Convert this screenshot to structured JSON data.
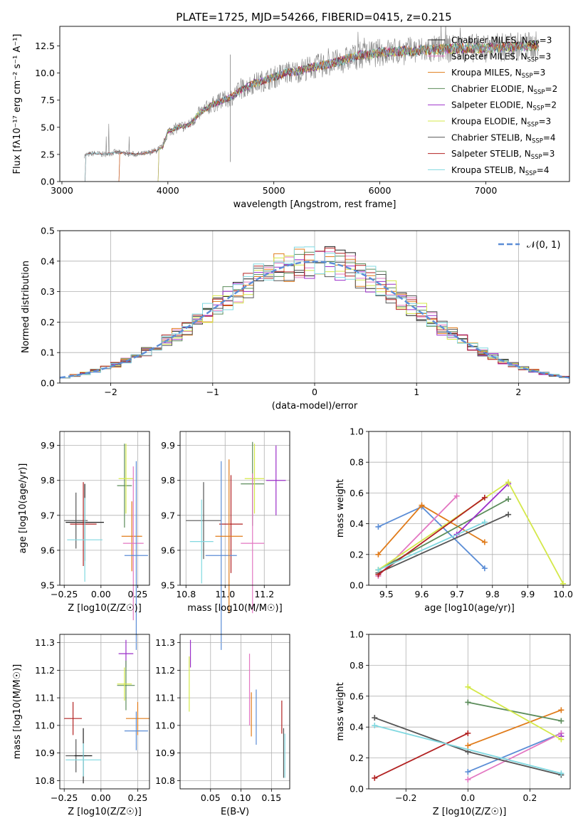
{
  "figure": {
    "title": "PLATE=1725, MJD=54266, FIBERID=0415, z=0.215"
  },
  "colors": {
    "chabrier_miles": "#1f1f1f",
    "salpeter_miles": "#e377c2",
    "kroupa_miles": "#e07b1a",
    "chabrier_elodie": "#5b8c5a",
    "salpeter_elodie": "#9b2fc9",
    "kroupa_elodie": "#d4e84a",
    "chabrier_stelib": "#555555",
    "salpeter_stelib": "#b22222",
    "kroupa_stelib": "#80d8e0",
    "spectrum": "#808080",
    "blue": "#5b8dd6",
    "grid": "#b0b0b0"
  },
  "chart_data": [
    {
      "id": "spectrum",
      "type": "line",
      "title": "PLATE=1725, MJD=54266, FIBERID=0415, z=0.215",
      "xlabel": "wavelength [Angstrom, rest frame]",
      "ylabel": "Flux [fλ10⁻¹⁷ erg cm⁻² s⁻¹ A⁻¹]",
      "xlim": [
        2980,
        7790
      ],
      "ylim": [
        0,
        14.3
      ],
      "xticks": [
        3000,
        4000,
        5000,
        6000,
        7000
      ],
      "yticks": [
        0.0,
        2.5,
        5.0,
        7.5,
        10.0,
        12.5
      ],
      "grid": false,
      "legend_position": "right",
      "series": [
        {
          "name": "Chabrier MILES, N_SSP=3",
          "start": 3530
        },
        {
          "name": "Salpeter MILES, N_SSP=3",
          "start": 3530
        },
        {
          "name": "Kroupa MILES, N_SSP=3",
          "start": 3530
        },
        {
          "name": "Chabrier ELODIE, N_SSP=2",
          "start": 3900
        },
        {
          "name": "Salpeter ELODIE, N_SSP=2",
          "start": 3900
        },
        {
          "name": "Kroupa ELODIE, N_SSP=3",
          "start": 3900
        },
        {
          "name": "Chabrier STELIB, N_SSP=4",
          "start": 3210
        },
        {
          "name": "Salpeter STELIB, N_SSP=3",
          "start": 3210
        },
        {
          "name": "Kroupa STELIB, N_SSP=4",
          "start": 3210
        }
      ],
      "continuum_x": [
        3210,
        3300,
        3400,
        3500,
        3600,
        3700,
        3800,
        3900,
        3950,
        4000,
        4100,
        4200,
        4300,
        4400,
        4500,
        4600,
        4700,
        4800,
        4900,
        5000,
        5100,
        5200,
        5300,
        5400,
        5500,
        5600,
        5700,
        5800,
        5900,
        6000,
        6200,
        6400,
        6600,
        6800,
        7000,
        7200,
        7400,
        7500
      ],
      "continuum_y": [
        2.4,
        2.6,
        2.5,
        2.7,
        2.6,
        2.5,
        2.6,
        2.9,
        3.2,
        4.6,
        5.0,
        5.2,
        6.3,
        7.0,
        7.4,
        7.8,
        8.5,
        9.0,
        9.3,
        9.6,
        10.0,
        10.1,
        10.4,
        10.6,
        10.8,
        11.0,
        11.3,
        11.6,
        11.7,
        11.9,
        12.0,
        12.1,
        12.2,
        12.3,
        12.3,
        12.4,
        12.5,
        12.5
      ]
    },
    {
      "id": "residuals",
      "type": "histogram",
      "xlabel": "(data-model)/error",
      "ylabel": "Normed distribution",
      "xlim": [
        -2.5,
        2.5
      ],
      "ylim": [
        0,
        0.5
      ],
      "xticks": [
        -2,
        -1,
        0,
        1,
        2
      ],
      "yticks": [
        0.0,
        0.1,
        0.2,
        0.3,
        0.4,
        0.5
      ],
      "grid": true,
      "bin_width": 0.1,
      "legend": "N(0,1)",
      "legend_position": "top-right"
    },
    {
      "id": "age-vs-Z",
      "type": "errorbar",
      "xlabel": "Z [log10(Z/Z☉)]",
      "ylabel": "age  [log10(age/yr)]",
      "xlim": [
        -0.28,
        0.33
      ],
      "ylim": [
        9.5,
        9.94
      ],
      "xticks": [
        -0.25,
        0.0,
        0.25
      ],
      "yticks": [
        9.5,
        9.6,
        9.7,
        9.8,
        9.9
      ],
      "grid": true,
      "points": [
        {
          "x": -0.11,
          "y": 9.68,
          "xerr": 0.13,
          "yerr": 0.11
        },
        {
          "x": -0.17,
          "y": 9.685,
          "xerr": 0.08,
          "yerr": 0.08
        },
        {
          "x": -0.12,
          "y": 9.675,
          "xerr": 0.09,
          "yerr": 0.12
        },
        {
          "x": -0.11,
          "y": 9.63,
          "xerr": 0.12,
          "yerr": 0.12
        },
        {
          "x": 0.16,
          "y": 9.785,
          "xerr": 0.05,
          "yerr": 0.12
        },
        {
          "x": 0.17,
          "y": 9.805,
          "xerr": 0.05,
          "yerr": 0.1
        },
        {
          "x": 0.21,
          "y": 9.64,
          "xerr": 0.07,
          "yerr": 0.1
        },
        {
          "x": 0.22,
          "y": 9.62,
          "xerr": 0.07,
          "yerr": 0.22
        },
        {
          "x": 0.24,
          "y": 9.585,
          "xerr": 0.08,
          "yerr": 0.27
        }
      ]
    },
    {
      "id": "age-vs-mass",
      "type": "errorbar",
      "xlabel": "mass [log10(M/M☉)]",
      "ylabel": "",
      "xlim": [
        10.77,
        11.33
      ],
      "ylim": [
        9.5,
        9.94
      ],
      "xticks": [
        10.8,
        11.0,
        11.2
      ],
      "yticks": [
        9.5,
        9.6,
        9.7,
        9.8,
        9.9
      ],
      "grid": true,
      "points": [
        {
          "x": 10.89,
          "y": 9.685,
          "xerr": 0.09,
          "yerr": 0.11
        },
        {
          "x": 10.88,
          "y": 9.625,
          "xerr": 0.06,
          "yerr": 0.12
        },
        {
          "x": 11.03,
          "y": 9.675,
          "xerr": 0.06,
          "yerr": 0.14
        },
        {
          "x": 10.98,
          "y": 9.585,
          "xerr": 0.08,
          "yerr": 0.27
        },
        {
          "x": 11.02,
          "y": 9.64,
          "xerr": 0.07,
          "yerr": 0.22
        },
        {
          "x": 11.14,
          "y": 9.79,
          "xerr": 0.06,
          "yerr": 0.12
        },
        {
          "x": 11.15,
          "y": 9.805,
          "xerr": 0.05,
          "yerr": 0.1
        },
        {
          "x": 11.26,
          "y": 9.8,
          "xerr": 0.05,
          "yerr": 0.1
        },
        {
          "x": 11.14,
          "y": 9.62,
          "xerr": 0.06,
          "yerr": 0.2
        }
      ]
    },
    {
      "id": "weight-vs-age",
      "type": "line",
      "xlabel": "age  [log10(age/yr)]",
      "ylabel": "mass weight",
      "xlim": [
        9.45,
        10.02
      ],
      "ylim": [
        0.0,
        1.0
      ],
      "xticks": [
        9.5,
        9.6,
        9.7,
        9.8,
        9.9,
        10.0
      ],
      "yticks": [
        0.0,
        0.2,
        0.4,
        0.6,
        0.8,
        1.0
      ],
      "grid": true,
      "series": [
        {
          "x": [
            9.477,
            9.6,
            9.778
          ],
          "y": [
            0.38,
            0.51,
            0.11
          ]
        },
        {
          "x": [
            9.477,
            9.6,
            9.778
          ],
          "y": [
            0.2,
            0.52,
            0.28
          ]
        },
        {
          "x": [
            9.477,
            9.699
          ],
          "y": [
            0.06,
            0.58
          ]
        },
        {
          "x": [
            9.477,
            9.845
          ],
          "y": [
            0.1,
            0.56
          ]
        },
        {
          "x": [
            9.699,
            9.845
          ],
          "y": [
            0.33,
            0.66
          ]
        },
        {
          "x": [
            9.477,
            9.845,
            10.0
          ],
          "y": [
            0.1,
            0.67,
            0.01
          ]
        },
        {
          "x": [
            9.477,
            9.845
          ],
          "y": [
            0.08,
            0.46
          ]
        },
        {
          "x": [
            9.477,
            9.778
          ],
          "y": [
            0.07,
            0.57
          ]
        },
        {
          "x": [
            9.477,
            9.778
          ],
          "y": [
            0.1,
            0.41
          ]
        }
      ]
    },
    {
      "id": "mass-vs-Z",
      "type": "errorbar",
      "xlabel": "Z [log10(Z/Z☉)]",
      "ylabel": "mass [log10(M/M☉)]",
      "xlim": [
        -0.28,
        0.33
      ],
      "ylim": [
        10.77,
        11.33
      ],
      "xticks": [
        -0.25,
        0.0,
        0.25
      ],
      "yticks": [
        10.8,
        10.9,
        11.0,
        11.1,
        11.2,
        11.3
      ],
      "grid": true,
      "points": [
        {
          "x": -0.17,
          "y": 10.89,
          "xerr": 0.07,
          "yerr": 0.06
        },
        {
          "x": -0.12,
          "y": 10.89,
          "xerr": 0.06,
          "yerr": 0.1
        },
        {
          "x": -0.19,
          "y": 11.025,
          "xerr": 0.06,
          "yerr": 0.06
        },
        {
          "x": -0.12,
          "y": 10.875,
          "xerr": 0.12,
          "yerr": 0.06
        },
        {
          "x": 0.17,
          "y": 11.26,
          "xerr": 0.05,
          "yerr": 0.05
        },
        {
          "x": 0.17,
          "y": 11.145,
          "xerr": 0.06,
          "yerr": 0.09
        },
        {
          "x": 0.16,
          "y": 11.15,
          "xerr": 0.05,
          "yerr": 0.06
        },
        {
          "x": 0.25,
          "y": 11.025,
          "xerr": 0.08,
          "yerr": 0.06
        },
        {
          "x": 0.24,
          "y": 10.98,
          "xerr": 0.08,
          "yerr": 0.07
        }
      ]
    },
    {
      "id": "mass-vs-EBV",
      "type": "errorbar",
      "xlabel": "E(B-V)",
      "ylabel": "",
      "xlim": [
        0.0,
        0.18
      ],
      "ylim": [
        10.77,
        11.33
      ],
      "xticks": [
        0.05,
        0.1,
        0.15
      ],
      "yticks": [
        10.8,
        10.9,
        11.0,
        11.1,
        11.2,
        11.3
      ],
      "grid": true,
      "points": [
        {
          "x": 0.015,
          "y": 11.15,
          "xerr": 0,
          "yerr": 0.1
        },
        {
          "x": 0.017,
          "y": 11.26,
          "xerr": 0,
          "yerr": 0.05
        },
        {
          "x": 0.114,
          "y": 11.13,
          "xerr": 0,
          "yerr": 0.13
        },
        {
          "x": 0.117,
          "y": 11.04,
          "xerr": 0,
          "yerr": 0.08
        },
        {
          "x": 0.125,
          "y": 11.03,
          "xerr": 0,
          "yerr": 0.1
        },
        {
          "x": 0.167,
          "y": 11.03,
          "xerr": 0,
          "yerr": 0.06
        },
        {
          "x": 0.17,
          "y": 10.9,
          "xerr": 0,
          "yerr": 0.09
        },
        {
          "x": 0.172,
          "y": 10.89,
          "xerr": 0,
          "yerr": 0.08
        }
      ]
    },
    {
      "id": "weight-vs-Z",
      "type": "line",
      "xlabel": "Z [log10(Z/Z☉)]",
      "ylabel": "mass weight",
      "xlim": [
        -0.32,
        0.33
      ],
      "ylim": [
        0.0,
        1.0
      ],
      "xticks": [
        -0.2,
        0.0,
        0.2
      ],
      "yticks": [
        0.0,
        0.2,
        0.4,
        0.6,
        0.8,
        1.0
      ],
      "grid": true,
      "series": [
        {
          "x": [
            0.0,
            0.301
          ],
          "y": [
            0.11,
            0.36
          ]
        },
        {
          "x": [
            0.0,
            0.301
          ],
          "y": [
            0.28,
            0.51
          ]
        },
        {
          "x": [
            0.0,
            0.301
          ],
          "y": [
            0.06,
            0.36
          ]
        },
        {
          "x": [
            0.0,
            0.301
          ],
          "y": [
            0.56,
            0.44
          ]
        },
        {
          "x": [
            0.301
          ],
          "y": [
            0.34
          ]
        },
        {
          "x": [
            0.0,
            0.301
          ],
          "y": [
            0.66,
            0.32
          ]
        },
        {
          "x": [
            -0.301,
            0.0,
            0.301
          ],
          "y": [
            0.46,
            0.24,
            0.09
          ]
        },
        {
          "x": [
            -0.301,
            0.0
          ],
          "y": [
            0.07,
            0.36
          ]
        },
        {
          "x": [
            -0.301,
            0.301
          ],
          "y": [
            0.41,
            0.1
          ]
        }
      ]
    }
  ]
}
